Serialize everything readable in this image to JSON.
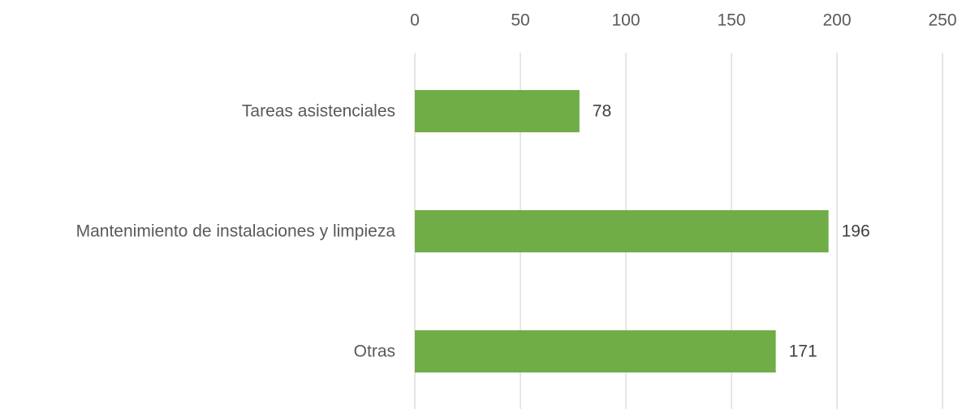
{
  "chart_data": {
    "type": "hbar",
    "categories": [
      "Tareas asistenciales",
      "Mantenimiento de instalaciones y limpieza",
      "Otras"
    ],
    "values": [
      78,
      196,
      171
    ],
    "color": "#70ad47",
    "xlim": [
      0,
      250
    ],
    "xticks": [
      0,
      50,
      100,
      150,
      200,
      250
    ],
    "grid": true
  }
}
